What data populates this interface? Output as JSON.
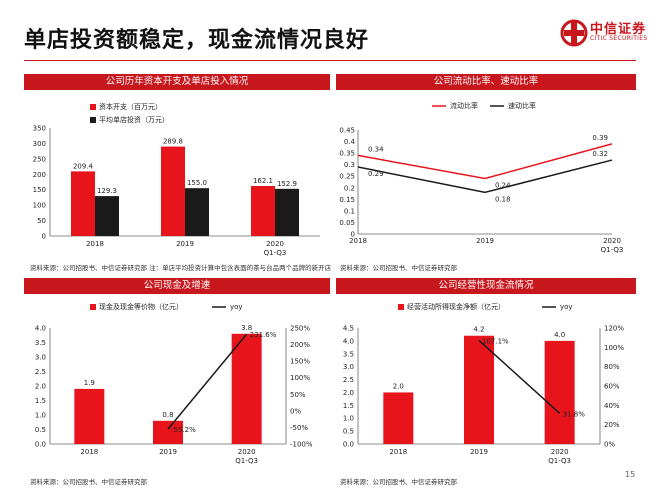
{
  "slide": {
    "title": "单店投资额稳定，现金流情况良好",
    "page_number": "15",
    "logo": {
      "cn": "中信证券",
      "en": "CITIC SECURITIES"
    },
    "accent_color": "#c8161d"
  },
  "panels": [
    {
      "header": "公司历年资本开支及单店投入情况",
      "source": "资料来源：公司招股书、中信证券研究部   注：单店平均投资计算中包含表面的茶与台品两个品牌的新开店"
    },
    {
      "header": "公司流动比率、速动比率",
      "source": "资料来源：公司招股书、中信证券研究部"
    },
    {
      "header": "公司现金及增速",
      "source": "资料来源：公司招股书、中信证券研究部"
    },
    {
      "header": "公司经营性现金流情况",
      "source": "资料来源：公司招股书、中信证券研究部"
    }
  ],
  "chart_data": [
    {
      "type": "bar",
      "categories": [
        "2018",
        "2019",
        "2020\nQ1-Q3"
      ],
      "series": [
        {
          "name": "资本开支（百万元）",
          "values": [
            209.4,
            289.8,
            162.1
          ],
          "color": "#e8141c"
        },
        {
          "name": "平均单店投资（万元）",
          "values": [
            129.3,
            155.0,
            152.9
          ],
          "color": "#1a1a1a"
        }
      ],
      "value_labels": [
        [
          "209.4",
          "289.8",
          "162.1"
        ],
        [
          "129.3",
          "155.0",
          "152.9"
        ]
      ],
      "ylim": [
        0,
        350
      ],
      "yticks": [
        "0",
        "50",
        "100",
        "150",
        "200",
        "250",
        "300",
        "350"
      ],
      "legend": "top-left"
    },
    {
      "type": "line",
      "categories": [
        "2018",
        "2019",
        "2020\nQ1-Q3"
      ],
      "series": [
        {
          "name": "流动比率",
          "values": [
            0.34,
            0.24,
            0.39
          ],
          "color": "#e8141c"
        },
        {
          "name": "速动比率",
          "values": [
            0.29,
            0.18,
            0.32
          ],
          "color": "#1a1a1a"
        }
      ],
      "value_labels": [
        [
          "0.34",
          "0.24",
          "0.39"
        ],
        [
          "0.29",
          "0.18",
          "0.32"
        ]
      ],
      "ylim": [
        0,
        0.45
      ],
      "yticks": [
        "0",
        "0.05",
        "0.1",
        "0.15",
        "0.2",
        "0.25",
        "0.3",
        "0.35",
        "0.4",
        "0.45"
      ],
      "legend": "top-left"
    },
    {
      "type": "bar",
      "categories": [
        "2018",
        "2019",
        "2020\nQ1-Q3"
      ],
      "series": [
        {
          "name": "现金及现金等价物（亿元）",
          "values": [
            1.9,
            0.8,
            3.8
          ],
          "color": "#e8141c",
          "axis": "left"
        },
        {
          "name": "yoy",
          "values": [
            null,
            -55.2,
            231.6
          ],
          "color": "#1a1a1a",
          "axis": "right",
          "render": "line"
        }
      ],
      "value_labels": [
        [
          "1.9",
          "0.8",
          "3.8"
        ],
        [
          "",
          "-55.2%",
          "231.6%"
        ]
      ],
      "ylim": [
        0,
        4.0
      ],
      "yticks": [
        "0.0",
        "0.5",
        "1.0",
        "1.5",
        "2.0",
        "2.5",
        "3.0",
        "3.5",
        "4.0"
      ],
      "y2lim": [
        -100,
        250
      ],
      "y2ticks": [
        "-100%",
        "-50%",
        "0%",
        "50%",
        "100%",
        "150%",
        "200%",
        "250%"
      ],
      "legend": "top-left"
    },
    {
      "type": "bar",
      "categories": [
        "2018",
        "2019",
        "2020\nQ1-Q3"
      ],
      "series": [
        {
          "name": "经营活动所得现金净额（亿元）",
          "values": [
            2.0,
            4.2,
            4.0
          ],
          "color": "#e8141c",
          "axis": "left"
        },
        {
          "name": "yoy",
          "values": [
            null,
            107.1,
            31.8
          ],
          "color": "#1a1a1a",
          "axis": "right",
          "render": "line"
        }
      ],
      "value_labels": [
        [
          "2.0",
          "4.2",
          "4.0"
        ],
        [
          "",
          "107.1%",
          "31.8%"
        ]
      ],
      "ylim": [
        0,
        4.5
      ],
      "yticks": [
        "0.0",
        "0.5",
        "1.0",
        "1.5",
        "2.0",
        "2.5",
        "3.0",
        "3.5",
        "4.0",
        "4.5"
      ],
      "y2lim": [
        0,
        120
      ],
      "y2ticks": [
        "0%",
        "20%",
        "40%",
        "60%",
        "80%",
        "100%",
        "120%"
      ],
      "legend": "top-left"
    }
  ]
}
